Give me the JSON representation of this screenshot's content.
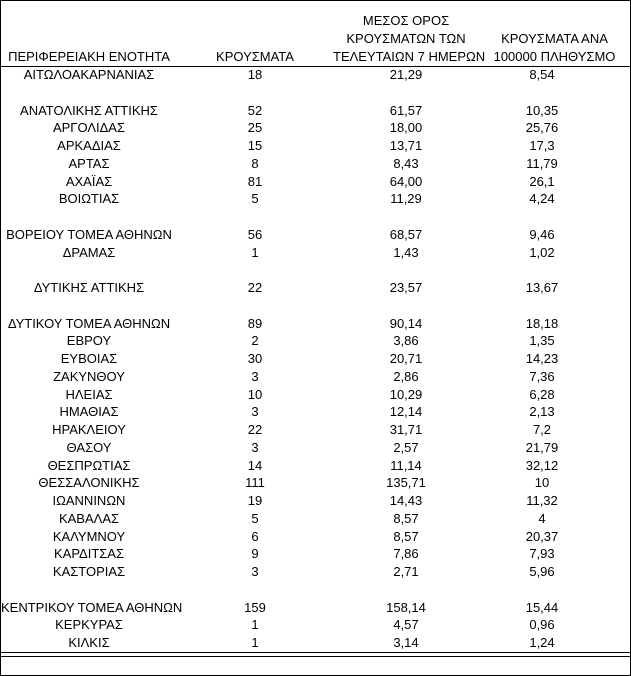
{
  "table": {
    "columns": [
      [
        "ΠΕΡΙΦΕΡΕΙΑΚΗ ΕΝΟΤΗΤΑ"
      ],
      [
        "ΚΡΟΥΣΜΑΤΑ"
      ],
      [
        "ΜΕΣΟΣ ΟΡΟΣ",
        "ΚΡΟΥΣΜΑΤΩΝ ΤΩΝ",
        "ΤΕΛΕΥΤΑΙΩΝ 7 ΗΜΕΡΩΝ"
      ],
      [
        "ΚΡΟΥΣΜΑΤΑ ΑΝΑ",
        "100000 ΠΛΗΘΥΣΜΟ"
      ]
    ],
    "groups": [
      [
        [
          "ΑΙΤΩΛΟΑΚΑΡΝΑΝΙΑΣ",
          "18",
          "21,29",
          "8,54"
        ]
      ],
      [
        [
          "ΑΝΑΤΟΛΙΚΗΣ ΑΤΤΙΚΗΣ",
          "52",
          "61,57",
          "10,35"
        ],
        [
          "ΑΡΓΟΛΙΔΑΣ",
          "25",
          "18,00",
          "25,76"
        ],
        [
          "ΑΡΚΑΔΙΑΣ",
          "15",
          "13,71",
          "17,3"
        ],
        [
          "ΑΡΤΑΣ",
          "8",
          "8,43",
          "11,79"
        ],
        [
          "ΑΧΑΪΑΣ",
          "81",
          "64,00",
          "26,1"
        ],
        [
          "ΒΟΙΩΤΙΑΣ",
          "5",
          "11,29",
          "4,24"
        ]
      ],
      [
        [
          "ΒΟΡΕΙΟΥ ΤΟΜΕΑ ΑΘΗΝΩΝ",
          "56",
          "68,57",
          "9,46"
        ],
        [
          "ΔΡΑΜΑΣ",
          "1",
          "1,43",
          "1,02"
        ]
      ],
      [
        [
          "ΔΥΤΙΚΗΣ ΑΤΤΙΚΗΣ",
          "22",
          "23,57",
          "13,67"
        ]
      ],
      [
        [
          "ΔΥΤΙΚΟΥ ΤΟΜΕΑ ΑΘΗΝΩΝ",
          "89",
          "90,14",
          "18,18"
        ],
        [
          "ΕΒΡΟΥ",
          "2",
          "3,86",
          "1,35"
        ],
        [
          "ΕΥΒΟΙΑΣ",
          "30",
          "20,71",
          "14,23"
        ],
        [
          "ΖΑΚΥΝΘΟΥ",
          "3",
          "2,86",
          "7,36"
        ],
        [
          "ΗΛΕΙΑΣ",
          "10",
          "10,29",
          "6,28"
        ],
        [
          "ΗΜΑΘΙΑΣ",
          "3",
          "12,14",
          "2,13"
        ],
        [
          "ΗΡΑΚΛΕΙΟΥ",
          "22",
          "31,71",
          "7,2"
        ],
        [
          "ΘΑΣΟΥ",
          "3",
          "2,57",
          "21,79"
        ],
        [
          "ΘΕΣΠΡΩΤΙΑΣ",
          "14",
          "11,14",
          "32,12"
        ],
        [
          "ΘΕΣΣΑΛΟΝΙΚΗΣ",
          "111",
          "135,71",
          "10"
        ],
        [
          "ΙΩΑΝΝΙΝΩΝ",
          "19",
          "14,43",
          "11,32"
        ],
        [
          "ΚΑΒΑΛΑΣ",
          "5",
          "8,57",
          "4"
        ],
        [
          "ΚΑΛΥΜΝΟΥ",
          "6",
          "8,57",
          "20,37"
        ],
        [
          "ΚΑΡΔΙΤΣΑΣ",
          "9",
          "7,86",
          "7,93"
        ],
        [
          "ΚΑΣΤΟΡΙΑΣ",
          "3",
          "2,71",
          "5,96"
        ]
      ],
      [
        [
          "ΚΕΝΤΡΙΚΟΥ ΤΟΜΕΑ ΑΘΗΝΩΝ",
          "159",
          "158,14",
          "15,44"
        ],
        [
          "ΚΕΡΚΥΡΑΣ",
          "1",
          "4,57",
          "0,96"
        ],
        [
          "ΚΙΛΚΙΣ",
          "1",
          "3,14",
          "1,24"
        ]
      ]
    ]
  }
}
